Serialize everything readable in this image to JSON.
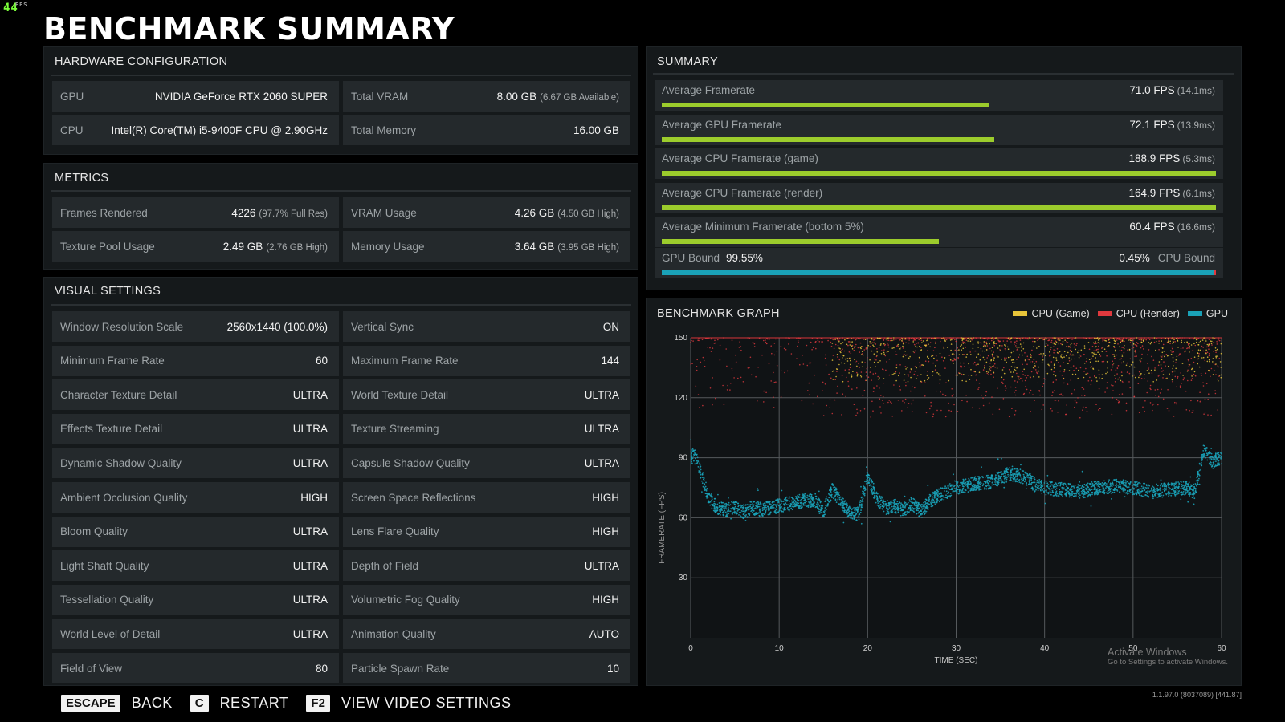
{
  "overlay": {
    "fps": "44",
    "fps_small": "FPS"
  },
  "title": "BENCHMARK SUMMARY",
  "hardware": {
    "title": "HARDWARE CONFIGURATION",
    "rows": [
      [
        {
          "label": "GPU",
          "value": "NVIDIA GeForce RTX 2060 SUPER",
          "sub": ""
        },
        {
          "label": "Total VRAM",
          "value": "8.00 GB",
          "sub": "(6.67 GB Available)"
        }
      ],
      [
        {
          "label": "CPU",
          "value": "Intel(R) Core(TM) i5-9400F CPU @ 2.90GHz",
          "sub": ""
        },
        {
          "label": "Total Memory",
          "value": "16.00 GB",
          "sub": ""
        }
      ]
    ]
  },
  "metrics": {
    "title": "METRICS",
    "rows": [
      [
        {
          "label": "Frames Rendered",
          "value": "4226",
          "sub": "(97.7% Full Res)"
        },
        {
          "label": "VRAM Usage",
          "value": "4.26 GB",
          "sub": "(4.50 GB High)"
        }
      ],
      [
        {
          "label": "Texture Pool Usage",
          "value": "2.49 GB",
          "sub": "(2.76 GB High)"
        },
        {
          "label": "Memory Usage",
          "value": "3.64 GB",
          "sub": "(3.95 GB High)"
        }
      ]
    ]
  },
  "visual": {
    "title": "VISUAL SETTINGS",
    "rows": [
      [
        {
          "label": "Window Resolution Scale",
          "value": "2560x1440 (100.0%)"
        },
        {
          "label": "Vertical Sync",
          "value": "ON"
        }
      ],
      [
        {
          "label": "Minimum Frame Rate",
          "value": "60"
        },
        {
          "label": "Maximum Frame Rate",
          "value": "144"
        }
      ],
      [
        {
          "label": "Character Texture Detail",
          "value": "ULTRA"
        },
        {
          "label": "World Texture Detail",
          "value": "ULTRA"
        }
      ],
      [
        {
          "label": "Effects Texture Detail",
          "value": "ULTRA"
        },
        {
          "label": "Texture Streaming",
          "value": "ULTRA"
        }
      ],
      [
        {
          "label": "Dynamic Shadow Quality",
          "value": "ULTRA"
        },
        {
          "label": "Capsule Shadow Quality",
          "value": "ULTRA"
        }
      ],
      [
        {
          "label": "Ambient Occlusion Quality",
          "value": "HIGH"
        },
        {
          "label": "Screen Space Reflections",
          "value": "HIGH"
        }
      ],
      [
        {
          "label": "Bloom Quality",
          "value": "ULTRA"
        },
        {
          "label": "Lens Flare Quality",
          "value": "HIGH"
        }
      ],
      [
        {
          "label": "Light Shaft Quality",
          "value": "ULTRA"
        },
        {
          "label": "Depth of Field",
          "value": "ULTRA"
        }
      ],
      [
        {
          "label": "Tessellation Quality",
          "value": "ULTRA"
        },
        {
          "label": "Volumetric Fog Quality",
          "value": "HIGH"
        }
      ],
      [
        {
          "label": "World Level of Detail",
          "value": "ULTRA"
        },
        {
          "label": "Animation Quality",
          "value": "AUTO"
        }
      ],
      [
        {
          "label": "Field of View",
          "value": "80"
        },
        {
          "label": "Particle Spawn Rate",
          "value": "10"
        }
      ]
    ]
  },
  "summary": {
    "title": "SUMMARY",
    "bar_color": "#9ccc2c",
    "rows": [
      {
        "label": "Average Framerate",
        "value": "71.0 FPS",
        "sub": "(14.1ms)",
        "fill": 0.59
      },
      {
        "label": "Average GPU Framerate",
        "value": "72.1 FPS",
        "sub": "(13.9ms)",
        "fill": 0.6
      },
      {
        "label": "Average CPU Framerate (game)",
        "value": "188.9 FPS",
        "sub": "(5.3ms)",
        "fill": 1.0
      },
      {
        "label": "Average CPU Framerate (render)",
        "value": "164.9 FPS",
        "sub": "(6.1ms)",
        "fill": 1.0
      },
      {
        "label": "Average Minimum Framerate (bottom 5%)",
        "value": "60.4 FPS",
        "sub": "(16.6ms)",
        "fill": 0.5
      }
    ],
    "bound": {
      "gpu_label": "GPU Bound",
      "gpu_value": "99.55%",
      "cpu_label": "CPU Bound",
      "cpu_value": "0.45%",
      "gpu_fraction": 0.9955,
      "gpu_color": "#1aa2b8",
      "cpu_color": "#e0393e"
    }
  },
  "graph": {
    "title": "BENCHMARK GRAPH",
    "legend": [
      {
        "name": "CPU (Game)",
        "color": "#e8c53a"
      },
      {
        "name": "CPU (Render)",
        "color": "#e0393e"
      },
      {
        "name": "GPU",
        "color": "#1aa2b8"
      }
    ]
  },
  "chart_data": {
    "type": "scatter",
    "title": "BENCHMARK GRAPH",
    "xlabel": "TIME (SEC)",
    "ylabel": "FRAMERATE (FPS)",
    "xlim": [
      0,
      60
    ],
    "ylim": [
      0,
      150
    ],
    "xticks": [
      0,
      10,
      20,
      30,
      40,
      50,
      60
    ],
    "yticks": [
      30,
      60,
      90,
      120,
      150
    ],
    "grid": true,
    "legend_position": "top-right",
    "series": [
      {
        "name": "CPU (Game)",
        "color": "#e8c53a",
        "typical_range": [
          130,
          150
        ],
        "x_range": [
          16,
          60
        ]
      },
      {
        "name": "CPU (Render)",
        "color": "#e0393e",
        "typical_range": [
          110,
          150
        ],
        "x_range": [
          0,
          60
        ]
      },
      {
        "name": "GPU",
        "color": "#1aa2b8",
        "x": [
          0,
          0.5,
          1,
          2,
          3,
          4,
          5,
          6,
          7,
          8,
          10,
          12,
          14,
          15,
          16,
          17,
          18,
          19,
          20,
          21,
          22,
          23,
          24,
          25,
          26,
          27,
          28,
          30,
          32,
          34,
          36,
          38,
          39,
          40,
          42,
          44,
          46,
          48,
          50,
          52,
          54,
          56,
          57,
          58,
          59,
          60
        ],
        "y": [
          90,
          92,
          85,
          70,
          65,
          64,
          65,
          63,
          65,
          64,
          66,
          68,
          69,
          63,
          74,
          68,
          62,
          62,
          81,
          70,
          65,
          66,
          64,
          67,
          63,
          68,
          71,
          75,
          77,
          78,
          82,
          80,
          76,
          75,
          74,
          73,
          75,
          76,
          75,
          73,
          74,
          75,
          73,
          94,
          88,
          90
        ]
      }
    ]
  },
  "footer": {
    "keys": [
      {
        "key": "ESCAPE",
        "label": "BACK"
      },
      {
        "key": "C",
        "label": "RESTART"
      },
      {
        "key": "F2",
        "label": "VIEW VIDEO SETTINGS"
      }
    ],
    "build": "1.1.97.0 (8037089) [441.87]"
  },
  "watermark": {
    "line1": "Activate Windows",
    "line2": "Go to Settings to activate Windows."
  }
}
